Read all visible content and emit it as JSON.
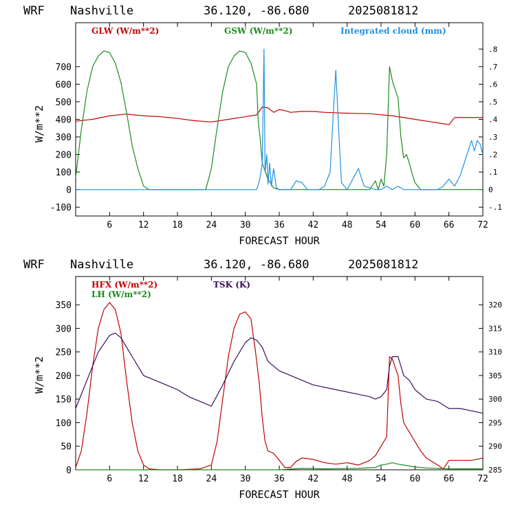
{
  "header": {
    "model": "WRF",
    "site": "Nashville",
    "coords": "36.120, -86.680",
    "run": "2025081812"
  },
  "colors": {
    "red": "#c00000",
    "green": "#1a8a1a",
    "blue": "#1e90e0",
    "purple": "#3a0a5a"
  },
  "chart_data": [
    {
      "type": "line",
      "xlabel": "FORECAST HOUR",
      "ylabel": "W/m**2",
      "xlim": [
        0,
        72
      ],
      "ylim": [
        -150,
        950
      ],
      "y2lim": [
        -0.15,
        0.95
      ],
      "xticks": [
        "6",
        "12",
        "18",
        "24",
        "30",
        "36",
        "42",
        "48",
        "54",
        "60",
        "66",
        "72"
      ],
      "yticks": [
        "-100",
        "0",
        "100",
        "200",
        "300",
        "400",
        "500",
        "600",
        "700"
      ],
      "y2ticks": [
        "-.1",
        "0",
        ".1",
        ".2",
        ".3",
        ".4",
        ".5",
        ".6",
        ".7",
        ".8"
      ],
      "series": [
        {
          "name": "GLW (W/m**2)",
          "color": "red",
          "axis": "left",
          "x": [
            0,
            3,
            6,
            9,
            12,
            15,
            18,
            21,
            24,
            27,
            30,
            32,
            33,
            34,
            35,
            36,
            37,
            38,
            40,
            42,
            44,
            48,
            52,
            56,
            58,
            60,
            64,
            66,
            67,
            70,
            72
          ],
          "y": [
            390,
            400,
            420,
            430,
            420,
            415,
            405,
            392,
            385,
            400,
            415,
            425,
            470,
            465,
            440,
            455,
            450,
            440,
            445,
            445,
            440,
            435,
            432,
            420,
            410,
            400,
            380,
            370,
            410,
            410,
            410
          ]
        },
        {
          "name": "GSW (W/m**2)",
          "color": "green",
          "axis": "left",
          "x": [
            0,
            1,
            2,
            3,
            4,
            5,
            6,
            7,
            8,
            9,
            10,
            11,
            12,
            13,
            23,
            24,
            25,
            26,
            27,
            28,
            29,
            30,
            31,
            32,
            32.3,
            32.6,
            33,
            34,
            35,
            36,
            52,
            53,
            53.5,
            54,
            54.5,
            55,
            55.5,
            56,
            57,
            57.5,
            58,
            58.5,
            59,
            59.5,
            60,
            61,
            72
          ],
          "y": [
            70,
            340,
            560,
            700,
            760,
            790,
            780,
            720,
            610,
            440,
            250,
            120,
            20,
            0,
            0,
            120,
            350,
            560,
            700,
            760,
            790,
            780,
            720,
            600,
            380,
            300,
            150,
            60,
            10,
            0,
            0,
            50,
            0,
            60,
            20,
            200,
            700,
            620,
            520,
            300,
            180,
            200,
            150,
            90,
            40,
            0,
            0
          ]
        },
        {
          "name": "Integrated cloud (mm)",
          "color": "blue",
          "axis": "right",
          "x": [
            0,
            32,
            32.5,
            33,
            33.3,
            33.5,
            33.8,
            34,
            34.3,
            34.6,
            35,
            35.5,
            36,
            38,
            39,
            40,
            41,
            43,
            44,
            45,
            45.5,
            46,
            46.5,
            47,
            48,
            49,
            50,
            51,
            53,
            54,
            55,
            56,
            57,
            58,
            63,
            64,
            65,
            66,
            67,
            68,
            69,
            70,
            70.5,
            71,
            71.5,
            72
          ],
          "y": [
            0,
            0,
            0.05,
            0.15,
            0.8,
            0.1,
            0.2,
            0.03,
            0.15,
            0.02,
            0.12,
            0.01,
            0,
            0,
            0.05,
            0.04,
            0,
            0,
            0.02,
            0.1,
            0.4,
            0.68,
            0.35,
            0.04,
            0,
            0.06,
            0.12,
            0.02,
            0,
            0,
            0.02,
            0,
            0.02,
            0,
            0,
            0,
            0.02,
            0.06,
            0.02,
            0.08,
            0.18,
            0.28,
            0.22,
            0.28,
            0.26,
            0.2
          ]
        }
      ]
    },
    {
      "type": "line",
      "xlabel": "FORECAST HOUR",
      "ylabel": "W/m**2",
      "xlim": [
        0,
        72
      ],
      "ylim": [
        0,
        410
      ],
      "y2lim": [
        285,
        326
      ],
      "xticks": [
        "6",
        "12",
        "18",
        "24",
        "30",
        "36",
        "42",
        "48",
        "54",
        "60",
        "66",
        "72"
      ],
      "yticks": [
        "0",
        "50",
        "100",
        "150",
        "200",
        "250",
        "300",
        "350"
      ],
      "y2ticks": [
        "285",
        "290",
        "295",
        "300",
        "305",
        "310",
        "315",
        "320"
      ],
      "series": [
        {
          "name": "HFX (W/m**2)",
          "color": "red",
          "axis": "left",
          "x": [
            0,
            1,
            2,
            3,
            4,
            5,
            6,
            7,
            8,
            9,
            10,
            11,
            12,
            13,
            15,
            18,
            22,
            24,
            25,
            26,
            27,
            28,
            29,
            30,
            31,
            31.8,
            32.5,
            33,
            33.5,
            34,
            35,
            36,
            37,
            38,
            39,
            40,
            42,
            44,
            46,
            48,
            50,
            52,
            53,
            54,
            55,
            55.5,
            56,
            57,
            57.5,
            58,
            59,
            60,
            61,
            62,
            64,
            65,
            66,
            68,
            70,
            72
          ],
          "y": [
            5,
            40,
            120,
            220,
            300,
            340,
            355,
            340,
            290,
            190,
            100,
            40,
            10,
            2,
            0,
            0,
            2,
            10,
            60,
            150,
            240,
            300,
            330,
            335,
            320,
            250,
            180,
            110,
            60,
            40,
            35,
            20,
            5,
            5,
            18,
            25,
            22,
            15,
            12,
            15,
            10,
            20,
            30,
            50,
            70,
            240,
            235,
            200,
            140,
            100,
            80,
            60,
            40,
            25,
            10,
            2,
            20,
            20,
            20,
            25
          ]
        },
        {
          "name": "LH  (W/m**2)",
          "color": "green",
          "axis": "left",
          "x": [
            0,
            36,
            40,
            44,
            50,
            53,
            54,
            55,
            56,
            57,
            58,
            59,
            60,
            62,
            66,
            72
          ],
          "y": [
            0,
            0,
            3,
            2,
            3,
            5,
            10,
            12,
            15,
            12,
            10,
            8,
            6,
            4,
            2,
            2
          ]
        },
        {
          "name": "TSK (K)",
          "color": "purple",
          "axis": "right",
          "x": [
            0,
            2,
            4,
            6,
            7,
            8,
            10,
            12,
            14,
            16,
            18,
            20,
            22,
            24,
            26,
            28,
            30,
            31,
            32,
            33,
            34,
            36,
            38,
            40,
            42,
            46,
            50,
            52,
            53,
            54,
            55,
            55.5,
            56,
            57,
            58,
            59,
            60,
            62,
            64,
            66,
            68,
            70,
            72
          ],
          "y": [
            298,
            304,
            310,
            313.5,
            314,
            313,
            309,
            305,
            304,
            303,
            302,
            300.5,
            299.5,
            298.5,
            303,
            308,
            312,
            313,
            312.5,
            311,
            308,
            306,
            305,
            304,
            303,
            302,
            301,
            300.5,
            300,
            300.5,
            302,
            307,
            309,
            309,
            305,
            304,
            302,
            300,
            299.5,
            298,
            298,
            297.5,
            297
          ]
        }
      ]
    }
  ]
}
